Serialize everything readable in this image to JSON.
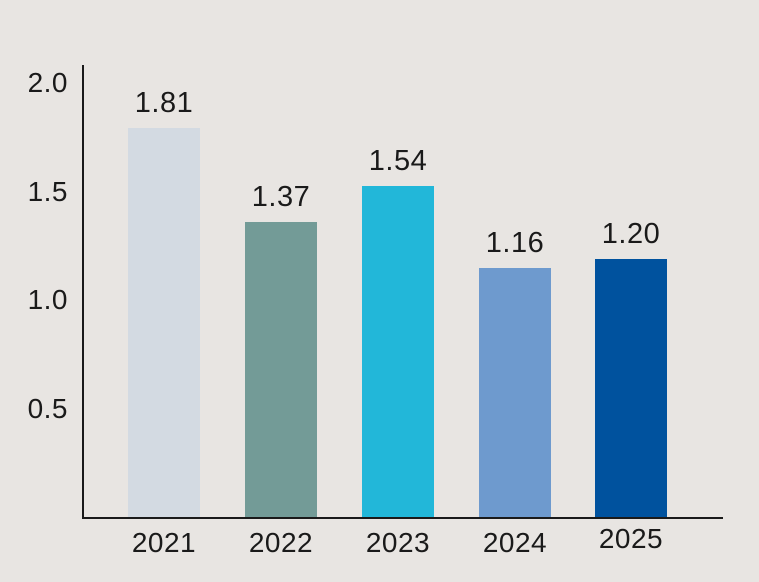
{
  "chart_data": {
    "type": "bar",
    "title": "",
    "xlabel": "",
    "ylabel": "",
    "categories": [
      "2021",
      "2022",
      "2023",
      "2024",
      "2025"
    ],
    "values": [
      1.81,
      1.37,
      1.54,
      1.16,
      1.2
    ],
    "value_labels": [
      "1.81",
      "1.37",
      "1.54",
      "1.16",
      "1.20"
    ],
    "bar_colors": [
      "#d3dae2",
      "#739b97",
      "#22b7d9",
      "#6e9ace",
      "#00529e"
    ],
    "ylim": [
      0,
      2.0
    ],
    "yticks": [
      0.5,
      1.0,
      1.5,
      2.0
    ],
    "ytick_labels": [
      "0.5",
      "1.0",
      "1.5",
      "2.0"
    ],
    "grid": false,
    "legend": false,
    "value_label_position": "above-bar",
    "background_color": "#e8e5e2",
    "axis_color": "#1a1a1a",
    "text_color": "#1a1a1a"
  }
}
